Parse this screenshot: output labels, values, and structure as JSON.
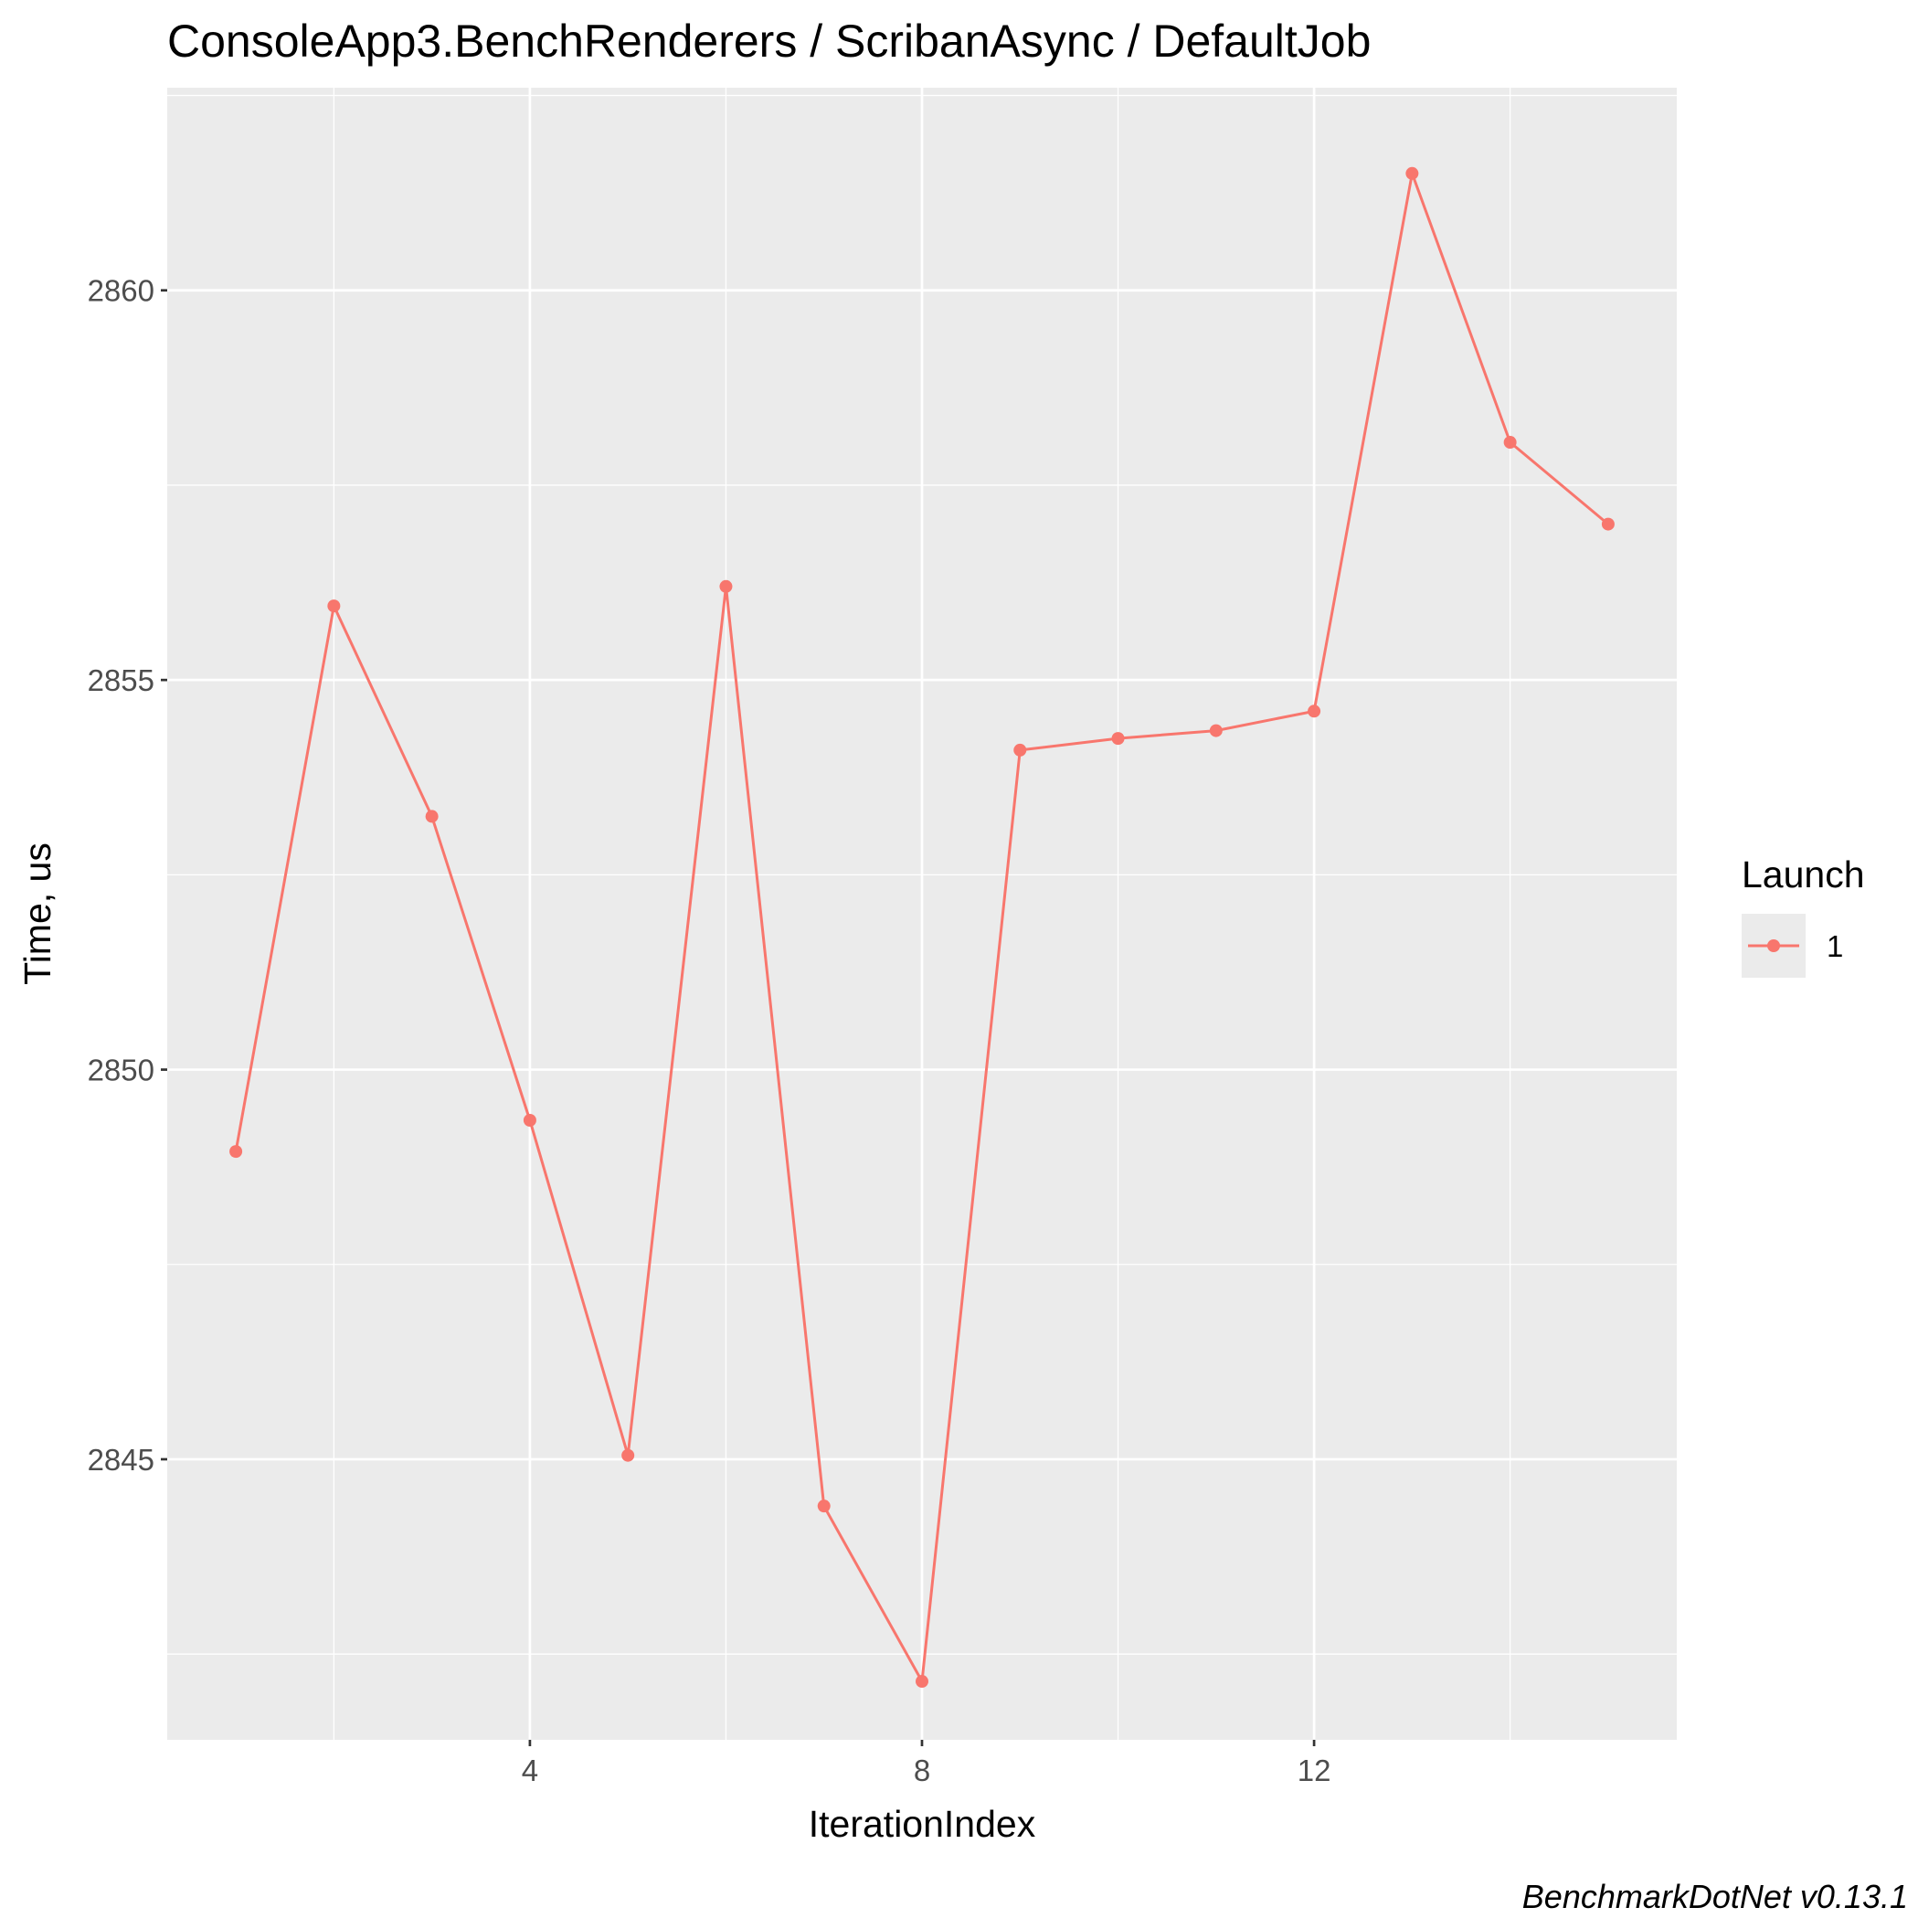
{
  "chart_data": {
    "type": "line",
    "title": "ConsoleApp3.BenchRenderers / ScribanAsync / DefaultJob",
    "xlabel": "IterationIndex",
    "ylabel": "Time, us",
    "caption": "BenchmarkDotNet v0.13.1",
    "x_ticks": [
      4,
      8,
      12
    ],
    "y_ticks": [
      2845,
      2850,
      2855,
      2860
    ],
    "xlim": [
      0.3,
      15.7
    ],
    "ylim": [
      2841.4,
      2862.6
    ],
    "grid": true,
    "legend": {
      "title": "Launch",
      "position": "right"
    },
    "colors": {
      "panel": "#EBEBEB",
      "grid": "#FFFFFF",
      "series": "#F8766D"
    },
    "series": [
      {
        "name": "1",
        "x": [
          1,
          2,
          3,
          4,
          5,
          6,
          7,
          8,
          9,
          10,
          11,
          12,
          13,
          14,
          15
        ],
        "y": [
          2848.95,
          2855.95,
          2853.25,
          2849.35,
          2845.05,
          2856.2,
          2844.4,
          2842.15,
          2854.1,
          2854.25,
          2854.35,
          2854.6,
          2861.5,
          2858.05,
          2857.0
        ]
      }
    ]
  }
}
